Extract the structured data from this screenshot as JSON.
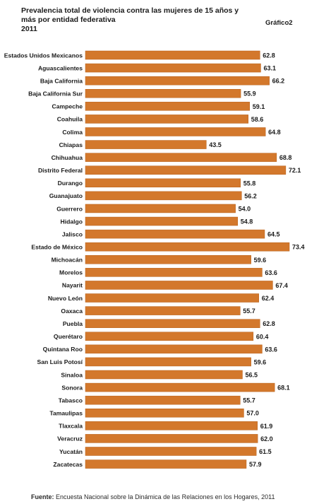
{
  "header": {
    "title_lines": [
      "Prevalencia total de violencia contra las mujeres de 15 años y",
      "más por entidad  federativa",
      "2011"
    ],
    "figure_label": "Gráfico2"
  },
  "footer": {
    "source_label": "Fuente:",
    "source_text": " Encuesta Nacional sobre la Dinámica de las Relaciones en los Hogares, 2011"
  },
  "colors": {
    "bar": "#d3782c",
    "bar_stroke": "#b65f18"
  },
  "chart_data": {
    "type": "bar",
    "orientation": "horizontal",
    "categories": [
      "Estados Unidos Mexicanos",
      "Aguascalientes",
      "Baja California",
      "Baja California Sur",
      "Campeche",
      "Coahuila",
      "Colima",
      "Chiapas",
      "Chihuahua",
      "Distrito Federal",
      "Durango",
      "Guanajuato",
      "Guerrero",
      "Hidalgo",
      "Jalisco",
      "Estado de México",
      "Michoacán",
      "Morelos",
      "Nayarit",
      "Nuevo León",
      "Oaxaca",
      "Puebla",
      "Querétaro",
      "Quintana Roo",
      "San Luis Potosí",
      "Sinaloa",
      "Sonora",
      "Tabasco",
      "Tamaulipas",
      "Tlaxcala",
      "Veracruz",
      "Yucatán",
      "Zacatecas"
    ],
    "values": [
      62.8,
      63.1,
      66.2,
      55.9,
      59.1,
      58.6,
      64.8,
      43.5,
      68.8,
      72.1,
      55.8,
      56.2,
      54.0,
      54.8,
      64.5,
      73.4,
      59.6,
      63.6,
      67.4,
      62.4,
      55.7,
      62.8,
      60.4,
      63.6,
      59.6,
      56.5,
      68.1,
      55.7,
      57.0,
      61.9,
      62.0,
      61.5,
      57.9
    ],
    "value_labels": [
      "62.8",
      "63.1",
      "66.2",
      "55.9",
      "59.1",
      "58.6",
      "64.8",
      "43.5",
      "68.8",
      "72.1",
      "55.8",
      "56.2",
      "54.0",
      "54.8",
      "64.5",
      "73.4",
      "59.6",
      "63.6",
      "67.4",
      "62.4",
      "55.7",
      "62.8",
      "60.4",
      "63.6",
      "59.6",
      "56.5",
      "68.1",
      "55.7",
      "57.0",
      "61.9",
      "62.0",
      "61.5",
      "57.9"
    ],
    "title": "Prevalencia total de violencia contra las mujeres de 15 años y más por entidad  federativa 2011",
    "xlabel": "",
    "ylabel": "",
    "xlim": [
      0,
      73.4
    ],
    "grid": false,
    "legend": "none"
  }
}
